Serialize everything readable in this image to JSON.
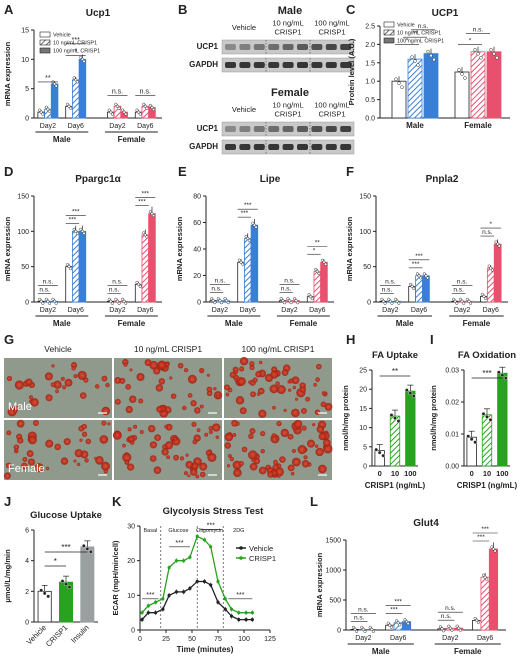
{
  "colors": {
    "vehicle": "#ffffff",
    "male": "#3a7fd6",
    "female": "#e8506e",
    "green": "#27a31f",
    "insulin": "#9aa0a0",
    "axis": "#222222"
  },
  "panelA": {
    "label": "A",
    "chart_data": {
      "type": "bar",
      "title": "Ucp1",
      "ylabel": "mRNA expression",
      "ylim": [
        0,
        15
      ],
      "yticks": [
        "0",
        "5",
        "10",
        "15"
      ],
      "legend": [
        "Vehicle",
        "10 ng/mL CRISP1",
        "100 ng/mL CRISP1"
      ],
      "categories": [
        "Day2",
        "Day6",
        "Day2",
        "Day6"
      ],
      "groups": [
        "Male",
        "Female"
      ],
      "series": [
        {
          "name": "Vehicle",
          "values": [
            1.0,
            2.0,
            1.0,
            1.0
          ]
        },
        {
          "name": "10 ng/mL CRISP1",
          "values": [
            1.5,
            6.5,
            2.0,
            2.0
          ]
        },
        {
          "name": "100 ng/mL CRISP1",
          "values": [
            5.8,
            10.0,
            1.0,
            1.8
          ]
        }
      ],
      "sig": [
        "**",
        "*",
        "***",
        "n.s.",
        "n.s."
      ]
    }
  },
  "panelB": {
    "label": "B",
    "male_title": "Male",
    "female_title": "Female",
    "cols": [
      "Vehicle",
      "10 ng/mL\nCRISP1",
      "100 ng/mL\nCRISP1"
    ],
    "rows": [
      "UCP1",
      "GAPDH"
    ]
  },
  "panelC": {
    "label": "C",
    "chart_data": {
      "type": "bar",
      "title": "UCP1",
      "ylabel": "Protein level (A.U.)",
      "ylim": [
        0,
        2.5
      ],
      "yticks": [
        "0.0",
        "0.5",
        "1.0",
        "1.5",
        "2.0",
        "2.5"
      ],
      "legend": [
        "Vehicle",
        "10 ng/mL CRISP1",
        "100 ng/mL CRISP1"
      ],
      "groups": [
        "Male",
        "Female"
      ],
      "series": [
        {
          "name": "Vehicle",
          "values": [
            1.0,
            1.25
          ]
        },
        {
          "name": "10 ng/mL CRISP1",
          "values": [
            1.6,
            1.8
          ]
        },
        {
          "name": "100 ng/mL CRISP1",
          "values": [
            1.75,
            1.8
          ]
        }
      ],
      "sig": [
        "*",
        "**",
        "n.s.",
        "*",
        "n.s."
      ]
    }
  },
  "panelD": {
    "label": "D",
    "chart_data": {
      "type": "bar",
      "title": "Ppargc1α",
      "ylabel": "mRNA expression",
      "ylim": [
        0,
        150
      ],
      "yticks": [
        "0",
        "50",
        "100",
        "150"
      ],
      "categories": [
        "Day2",
        "Day6",
        "Day2",
        "Day6"
      ],
      "groups": [
        "Male",
        "Female"
      ],
      "series": [
        {
          "name": "Vehicle",
          "values": [
            1,
            50,
            1,
            25
          ]
        },
        {
          "name": "10 ng/mL CRISP1",
          "values": [
            1,
            100,
            1,
            95
          ]
        },
        {
          "name": "100 ng/mL CRISP1",
          "values": [
            1,
            100,
            1,
            125
          ]
        }
      ],
      "sig": [
        "n.s.",
        "n.s.",
        "***",
        "***",
        "n.s.",
        "n.s.",
        "***",
        "***"
      ]
    }
  },
  "panelE": {
    "label": "E",
    "chart_data": {
      "type": "bar",
      "title": "Lipe",
      "ylabel": "mRNA expression",
      "ylim": [
        0,
        80
      ],
      "yticks": [
        "0",
        "20",
        "40",
        "60",
        "80"
      ],
      "categories": [
        "Day2",
        "Day6",
        "Day2",
        "Day6"
      ],
      "groups": [
        "Male",
        "Female"
      ],
      "series": [
        {
          "name": "Vehicle",
          "values": [
            1,
            30,
            1,
            4
          ]
        },
        {
          "name": "10 ng/mL CRISP1",
          "values": [
            1,
            48,
            1,
            23
          ]
        },
        {
          "name": "100 ng/mL CRISP1",
          "values": [
            1,
            58,
            1,
            30
          ]
        }
      ],
      "sig": [
        "n.s.",
        "n.s.",
        "***",
        "***",
        "n.s.",
        "n.s.",
        "*",
        "**"
      ]
    }
  },
  "panelF": {
    "label": "F",
    "chart_data": {
      "type": "bar",
      "title": "Pnpla2",
      "ylabel": "mRNA expression",
      "ylim": [
        0,
        150
      ],
      "yticks": [
        "0",
        "50",
        "100",
        "150"
      ],
      "categories": [
        "Day2",
        "Day6",
        "Day2",
        "Day6"
      ],
      "groups": [
        "Male",
        "Female"
      ],
      "series": [
        {
          "name": "Vehicle",
          "values": [
            1,
            22,
            1,
            8
          ]
        },
        {
          "name": "10 ng/mL CRISP1",
          "values": [
            1,
            37,
            1,
            48
          ]
        },
        {
          "name": "100 ng/mL CRISP1",
          "values": [
            1,
            37,
            1,
            82
          ]
        }
      ],
      "sig": [
        "n.s.",
        "n.s.",
        "***",
        "***",
        "n.s.",
        "n.s.",
        "n.s.",
        "*"
      ]
    }
  },
  "panelG": {
    "label": "G",
    "cols": [
      "Vehicle",
      "10 ng/mL CRISP1",
      "100 ng/mL CRISP1"
    ],
    "rows": [
      "Male",
      "Female"
    ]
  },
  "panelH": {
    "label": "H",
    "chart_data": {
      "type": "bar",
      "title": "FA Uptake",
      "ylabel": "nmol/h/mg protein",
      "xlabel": "CRISP1 (ng/mL)",
      "ylim": [
        0,
        25
      ],
      "yticks": [
        "0",
        "5",
        "10",
        "15",
        "20",
        "25"
      ],
      "categories": [
        "0",
        "10",
        "100"
      ],
      "values": [
        4,
        13,
        19.5
      ],
      "sig": [
        "**"
      ]
    }
  },
  "panelI": {
    "label": "I",
    "chart_data": {
      "type": "bar",
      "title": "FA Oxidation",
      "ylabel": "nmol/h/mg protein",
      "xlabel": "CRISP1 (ng/mL)",
      "ylim": [
        0,
        0.03
      ],
      "yticks": [
        "0.00",
        "0.01",
        "0.02",
        "0.03"
      ],
      "categories": [
        "0",
        "10",
        "100"
      ],
      "values": [
        0.009,
        0.016,
        0.029
      ],
      "sig": [
        "***"
      ]
    }
  },
  "panelJ": {
    "label": "J",
    "chart_data": {
      "type": "bar",
      "title": "Glucose Uptake",
      "ylabel": "μmol/L/mg/min",
      "ylim": [
        0,
        6
      ],
      "yticks": [
        "0",
        "2",
        "4",
        "6"
      ],
      "categories": [
        "Vehicle",
        "CRISP1",
        "Insulin"
      ],
      "values": [
        2.0,
        2.6,
        4.9
      ],
      "sig": [
        "*",
        "***"
      ]
    }
  },
  "panelK": {
    "label": "K",
    "chart_data": {
      "type": "line",
      "title": "Glycolysis Stress Test",
      "ylabel": "ECAR (mpH/min/cell)",
      "xlabel": "Time (minutes)",
      "xlim": [
        0,
        125
      ],
      "ylim": [
        0,
        30
      ],
      "xticks": [
        "0",
        "25",
        "50",
        "75",
        "100",
        "125"
      ],
      "yticks": [
        "0",
        "10",
        "20",
        "30"
      ],
      "phases": [
        "Basal",
        "Glucose",
        "Oligomycin",
        "2DG"
      ],
      "x": [
        2,
        8,
        15,
        22,
        28,
        35,
        42,
        48,
        55,
        62,
        68,
        75,
        82,
        88,
        95,
        102,
        108
      ],
      "series": [
        {
          "name": "Vehicle",
          "values": [
            3,
            5,
            5,
            6,
            10,
            11,
            11,
            12,
            14,
            14,
            13,
            8,
            6,
            4,
            3,
            3,
            3
          ]
        },
        {
          "name": "CRISP1",
          "values": [
            5,
            7,
            8,
            9,
            18,
            20,
            20,
            21,
            27,
            26,
            24,
            14,
            9,
            6,
            5,
            5,
            5
          ]
        }
      ],
      "sig": [
        "***",
        "***",
        "***",
        "***"
      ]
    }
  },
  "panelL": {
    "label": "L",
    "chart_data": {
      "type": "bar",
      "title": "Glut4",
      "ylabel": "mRNA expression",
      "ylim": [
        0,
        1500
      ],
      "yticks": [
        "0",
        "500",
        "1000",
        "1500"
      ],
      "categories": [
        "Day2",
        "Day6",
        "Day2",
        "Day6"
      ],
      "groups": [
        "Male",
        "Female"
      ],
      "series": [
        {
          "name": "Vehicle",
          "values": [
            10,
            80,
            20,
            160
          ]
        },
        {
          "name": "10 ng/mL CRISP1",
          "values": [
            10,
            120,
            30,
            880
          ]
        },
        {
          "name": "100 ng/mL CRISP1",
          "values": [
            10,
            140,
            30,
            1350
          ]
        }
      ],
      "sig": [
        "n.s.",
        "n.s.",
        "***",
        "***",
        "n.s.",
        "n.s.",
        "***",
        "***"
      ]
    }
  }
}
